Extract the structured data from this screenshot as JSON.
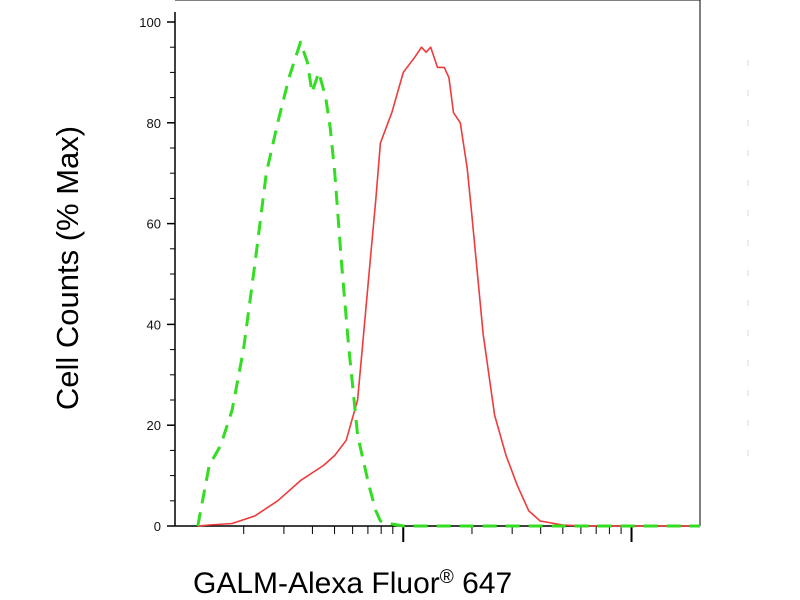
{
  "chart_data": {
    "type": "line",
    "title": "",
    "xlabel": "GALM-Alexa Fluor",
    "xlabel_superscript": "®",
    "xlabel_suffix": " 647",
    "ylabel": "Cell Counts (% Max)",
    "ylim": [
      0,
      100
    ],
    "y_ticks": [
      "0",
      "20",
      "40",
      "60",
      "80",
      "100"
    ],
    "x_scale": "log",
    "x_tick_labels": [],
    "grid": false,
    "legend": "none",
    "colors": {
      "series_1": "#ee3b3b",
      "series_2": "#33dd22"
    },
    "series": [
      {
        "style": "solid",
        "color": "#ee3b3b",
        "x": [
          0.1,
          0.15,
          0.25,
          0.35,
          0.45,
          0.55,
          0.65,
          0.7,
          0.75,
          0.8,
          0.82,
          0.85,
          0.88,
          0.9,
          0.95,
          1.0,
          1.05,
          1.08,
          1.1,
          1.12,
          1.15,
          1.18,
          1.2,
          1.22,
          1.25,
          1.28,
          1.3,
          1.35,
          1.4,
          1.45,
          1.5,
          1.55,
          1.6,
          1.7,
          1.8,
          2.0,
          2.3
        ],
        "y": [
          0,
          0.2,
          0.5,
          2,
          5,
          9,
          12,
          14,
          17,
          25,
          35,
          50,
          65,
          76,
          82,
          90,
          93,
          95,
          94,
          95,
          91,
          91,
          89,
          82,
          80,
          71,
          62,
          38,
          22,
          14,
          8,
          3,
          1,
          0.2,
          0,
          0,
          0
        ]
      },
      {
        "style": "dashed",
        "color": "#33dd22",
        "x": [
          0.1,
          0.15,
          0.2,
          0.25,
          0.3,
          0.35,
          0.4,
          0.45,
          0.5,
          0.55,
          0.58,
          0.6,
          0.63,
          0.66,
          0.68,
          0.7,
          0.73,
          0.76,
          0.8,
          0.85,
          0.88,
          0.9,
          0.95,
          1.0,
          1.1,
          1.3,
          1.6,
          2.0,
          2.3
        ],
        "y": [
          0,
          12,
          16,
          23,
          35,
          52,
          70,
          80,
          89,
          96,
          92,
          86,
          90,
          85,
          79,
          70,
          52,
          36,
          18,
          8,
          3,
          1,
          0.4,
          0,
          0,
          0,
          0,
          0,
          0
        ]
      }
    ]
  }
}
